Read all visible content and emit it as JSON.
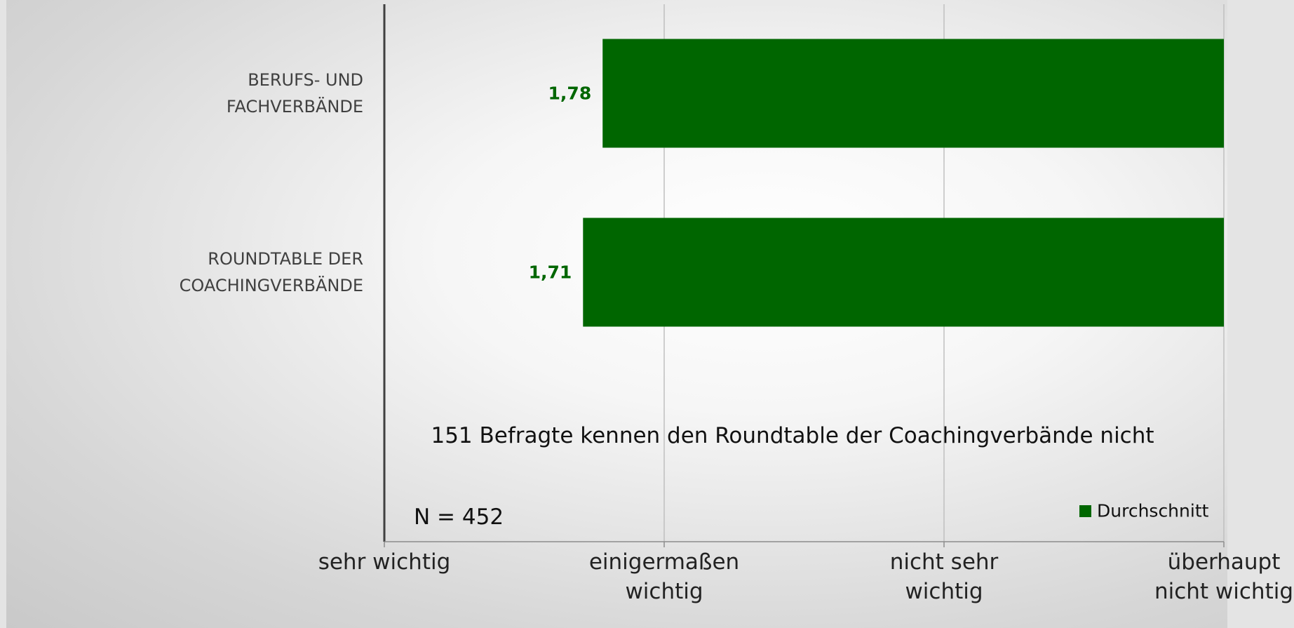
{
  "chart_data": {
    "type": "bar",
    "orientation": "horizontal",
    "categories": [
      "BERUFS- UND FACHVERBÄNDE",
      "ROUNDTABLE DER COACHINGVERBÄNDE"
    ],
    "series": [
      {
        "name": "Durchschnitt",
        "color": "#006600",
        "values": [
          1.78,
          1.71
        ],
        "value_labels": [
          "1,78",
          "1,71"
        ]
      }
    ],
    "xlim": [
      1,
      4
    ],
    "xticks": [
      {
        "value": 1,
        "label": "sehr wichtig"
      },
      {
        "value": 2,
        "label": "einigermaßen wichtig"
      },
      {
        "value": 3,
        "label": "nicht sehr wichtig"
      },
      {
        "value": 4,
        "label": "überhaupt nicht wichtig"
      }
    ],
    "grid": true,
    "legend": "bottom-right",
    "annotations": [
      "151 Befragte kennen den Roundtable der Coachingverbände nicht",
      "N = 452"
    ]
  }
}
